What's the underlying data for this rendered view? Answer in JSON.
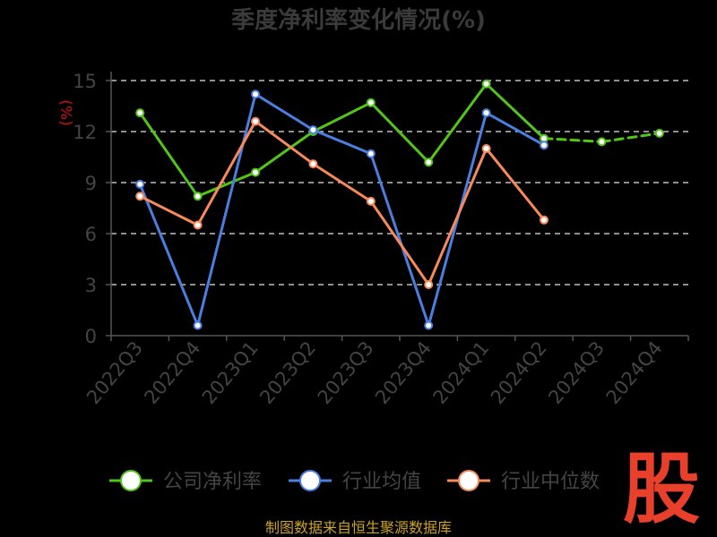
{
  "chart_data": {
    "type": "line",
    "title": "季度净利率变化情况(%)",
    "ylabel": "(%)",
    "ylim": [
      0,
      15
    ],
    "yticks": [
      0,
      3,
      6,
      9,
      12,
      15
    ],
    "grid": true,
    "legend_position": "bottom",
    "categories": [
      "2022Q3",
      "2022Q4",
      "2023Q1",
      "2023Q2",
      "2023Q3",
      "2023Q4",
      "2024Q1",
      "2024Q2",
      "2024Q3",
      "2024Q4"
    ],
    "series": [
      {
        "name": "公司净利率",
        "color": "#52c41a",
        "values": [
          13.1,
          8.2,
          9.6,
          12.0,
          13.7,
          10.2,
          14.8,
          11.6,
          11.4,
          11.9
        ],
        "dashed_from_index": 7
      },
      {
        "name": "行业均值",
        "color": "#4a7fe0",
        "values": [
          8.9,
          0.6,
          14.2,
          12.1,
          10.7,
          0.6,
          13.1,
          11.2,
          null,
          null
        ]
      },
      {
        "name": "行业中位数",
        "color": "#f7895a",
        "values": [
          8.2,
          6.5,
          12.6,
          10.1,
          7.9,
          3.0,
          11.0,
          6.8,
          null,
          null
        ]
      }
    ]
  },
  "footer": {
    "source": "制图数据来自恒生聚源数据库",
    "logo_text": "股"
  }
}
